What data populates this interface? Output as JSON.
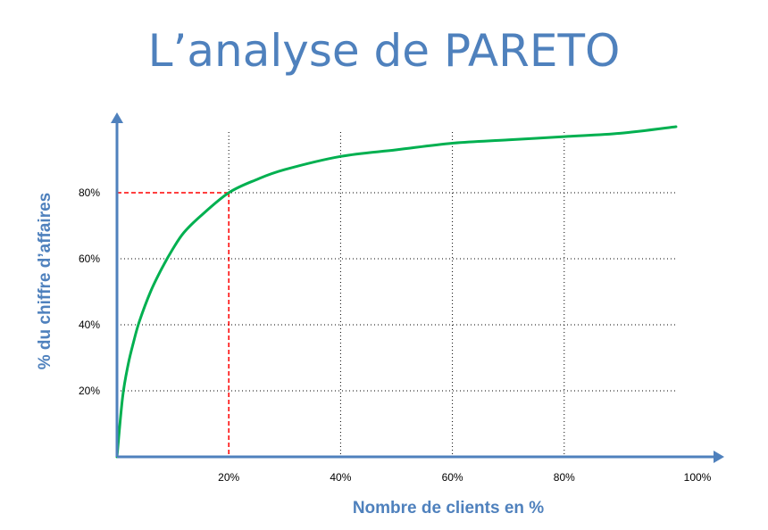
{
  "title": "L’analyse de PARETO",
  "chart_data": {
    "type": "line",
    "title": "L’analyse de PARETO",
    "xlabel": "Nombre de clients en %",
    "ylabel": "% du chiffre d’affaires",
    "xlim": [
      0,
      100
    ],
    "ylim": [
      0,
      100
    ],
    "x_ticks": [
      20,
      40,
      60,
      80,
      100
    ],
    "x_tick_labels": [
      "20%",
      "40%",
      "60%",
      "80%",
      "100%"
    ],
    "y_ticks": [
      20,
      40,
      60,
      80
    ],
    "y_tick_labels": [
      "20%",
      "40%",
      "60%",
      "80%"
    ],
    "grid": "dotted",
    "series": [
      {
        "color": "#00b050",
        "x": [
          0,
          1,
          2,
          3,
          4,
          6,
          8,
          10,
          12,
          15,
          20,
          25,
          30,
          40,
          50,
          60,
          70,
          80,
          90,
          100
        ],
        "y": [
          0,
          18,
          28,
          35,
          41,
          50,
          57,
          63,
          68,
          73,
          80,
          84,
          87,
          91,
          93,
          95,
          96,
          97,
          98,
          100
        ]
      }
    ],
    "annotations": [
      {
        "type": "reference-lines",
        "x": 20,
        "y": 80,
        "color": "#ff0000",
        "style": "dashed"
      }
    ],
    "colors": {
      "axis": "#4f81bd",
      "curve": "#00b050",
      "reference": "#ff0000",
      "grid": "#000000"
    }
  }
}
